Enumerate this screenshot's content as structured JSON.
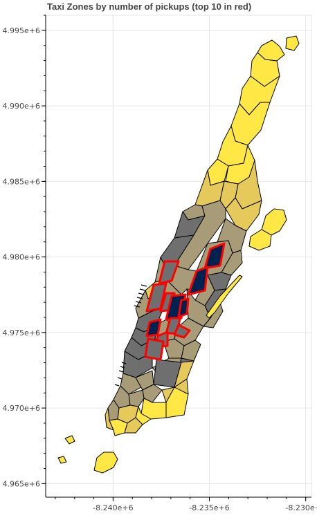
{
  "chart_data": {
    "type": "map",
    "title": "Taxi Zones by number of pickups (top 10 in red)",
    "xlim": [
      -8243500,
      -8229700
    ],
    "ylim": [
      4964100,
      4996000
    ],
    "x_ticks": [
      {
        "value": -8240000,
        "label": "-8.240e+6"
      },
      {
        "value": -8235000,
        "label": "-8.235e+6"
      },
      {
        "value": -8230000,
        "label": "-8.230e+6"
      }
    ],
    "y_ticks": [
      {
        "value": 4995000,
        "label": "4.995e+6"
      },
      {
        "value": 4990000,
        "label": "4.990e+6"
      },
      {
        "value": 4985000,
        "label": "4.985e+6"
      },
      {
        "value": 4980000,
        "label": "4.980e+6"
      },
      {
        "value": 4975000,
        "label": "4.975e+6"
      },
      {
        "value": 4970000,
        "label": "4.970e+6"
      },
      {
        "value": 4965000,
        "label": "4.965e+6"
      }
    ],
    "grid": true,
    "colors": {
      "low": "#ffe845",
      "mid_low": "#e5c95a",
      "mid": "#a89c78",
      "mid_high": "#6f6f6f",
      "high": "#00224e",
      "top10_outline": "#ff0000",
      "boundary": "#000000",
      "grid": "#e6e6e6"
    }
  }
}
